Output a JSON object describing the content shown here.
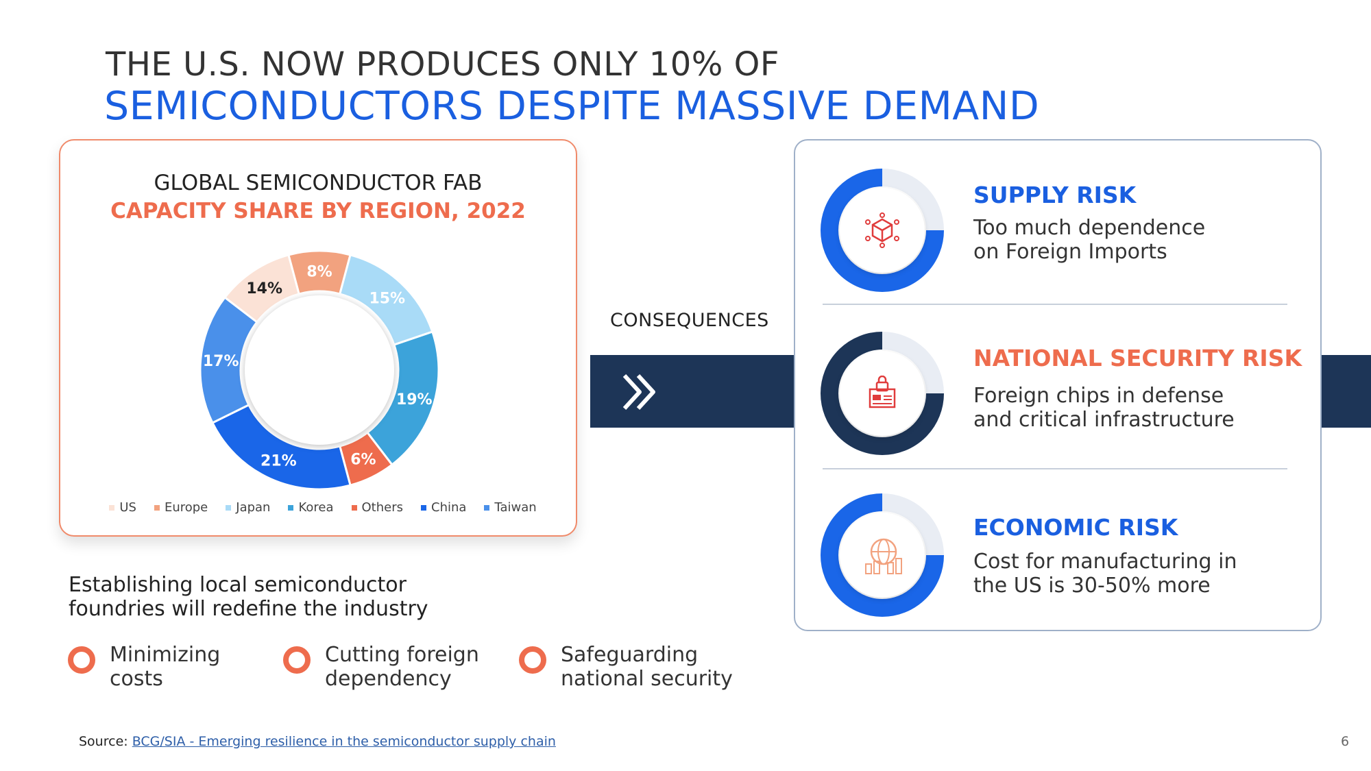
{
  "title": {
    "line1": "THE U.S. NOW PRODUCES ONLY 10% OF",
    "line2": "SEMICONDUCTORS DESPITE MASSIVE DEMAND"
  },
  "chart_data": {
    "type": "pie",
    "title": "GLOBAL SEMICONDUCTOR FAB",
    "subtitle": "CAPACITY SHARE BY REGION, 2022",
    "categories": [
      "US",
      "Europe",
      "Japan",
      "Korea",
      "Others",
      "China",
      "Taiwan"
    ],
    "values": [
      10,
      8,
      15,
      19,
      6,
      21,
      17
    ],
    "data_labels": [
      "",
      "8%",
      "15%",
      "19%",
      "6%",
      "21%",
      "17%"
    ],
    "extra_labels": [
      "14%"
    ],
    "colors": [
      "#fbe2d6",
      "#f2a27f",
      "#a9dbf7",
      "#3ca3da",
      "#ee6c4d",
      "#1a66e8",
      "#4a90ea"
    ],
    "legend_position": "bottom"
  },
  "consequences_label": "CONSEQUENCES",
  "risks": [
    {
      "title": "SUPPLY RISK",
      "desc1": "Too much dependence",
      "desc2": "on Foreign Imports",
      "title_color": "#1a5fe0",
      "ring_color": "#1a66e8",
      "icon": "package-icon"
    },
    {
      "title": "NATIONAL SECURITY RISK",
      "desc1": "Foreign chips in defense",
      "desc2": "and critical infrastructure",
      "title_color": "#ee6c4d",
      "ring_color": "#1d3557",
      "icon": "secure-building-icon"
    },
    {
      "title": "ECONOMIC RISK",
      "desc1": "Cost for manufacturing in",
      "desc2": "the US is 30-50% more",
      "title_color": "#1a5fe0",
      "ring_color": "#1a66e8",
      "icon": "globe-chart-icon"
    }
  ],
  "statement": {
    "line1": "Establishing local semiconductor",
    "line2": "foundries will redefine the industry"
  },
  "benefits": [
    {
      "line1": "Minimizing",
      "line2": "costs"
    },
    {
      "line1": "Cutting foreign",
      "line2": "dependency"
    },
    {
      "line1": "Safeguarding",
      "line2": "national security"
    }
  ],
  "source": {
    "label": "Source:",
    "link_text": "BCG/SIA - Emerging resilience in the semiconductor supply chain"
  },
  "page_number": "6"
}
